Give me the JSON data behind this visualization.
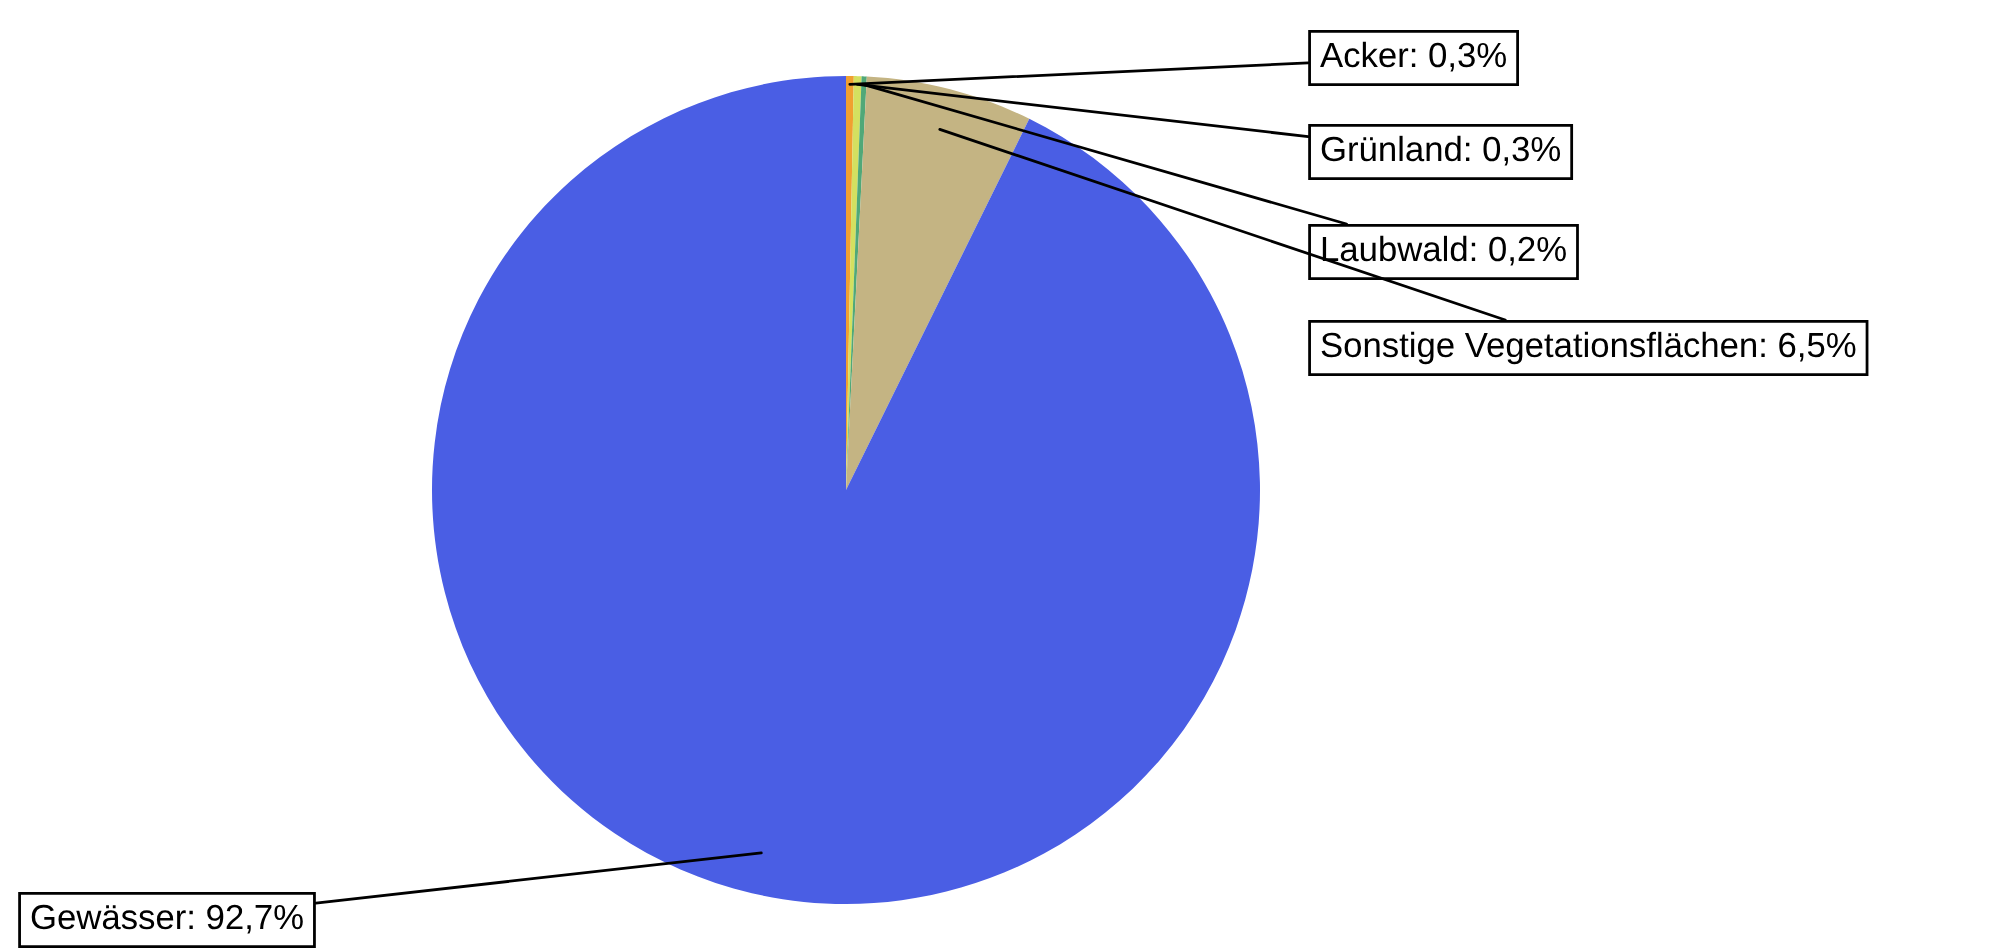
{
  "chart_data": {
    "type": "pie",
    "categories": [
      "Acker",
      "Grünland",
      "Laubwald",
      "Sonstige Vegetationsflächen",
      "Gewässer"
    ],
    "values": [
      0.3,
      0.3,
      0.2,
      6.5,
      92.7
    ],
    "value_labels": [
      "0,3%",
      "0,3%",
      "0,2%",
      "6,5%",
      "92,7%"
    ],
    "colors": [
      "#f0a030",
      "#d4e060",
      "#50a878",
      "#c4b483",
      "#4a5ee4"
    ]
  }
}
